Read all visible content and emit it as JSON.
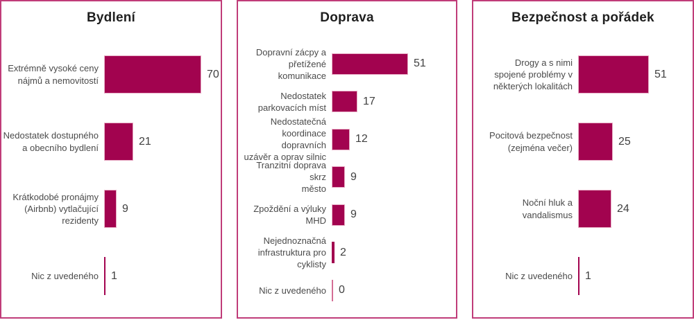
{
  "colors": {
    "bar_fill": "#A2034F",
    "bar_stroke": "#E8AEC6",
    "zero_bar": "#D46E96",
    "panel_border": "#C03C79",
    "label_text": "#4A4A4A",
    "value_text": "#404040",
    "title_text": "#1F1F1F"
  },
  "chart_data": [
    {
      "type": "bar",
      "orientation": "horizontal",
      "title": "Bydlení",
      "categories": [
        "Extrémně vysoké ceny\nnájmů a nemovitostí",
        "Nedostatek dostupného\na obecního bydlení",
        "Krátkodobé pronájmy\n(Airbnb) vytlačující\nrezidenty",
        "Nic z uvedeného"
      ],
      "values": [
        70,
        21,
        9,
        1
      ],
      "xlim": [
        0,
        70
      ],
      "data_labels": true,
      "grid": false,
      "legend": "none"
    },
    {
      "type": "bar",
      "orientation": "horizontal",
      "title": "Doprava",
      "categories": [
        "Dopravní zácpy a\npřetížené komunikace",
        "Nedostatek\nparkovacích míst",
        "Nedostatečná\nkoordinace dopravních\nuzávěr a oprav silnic",
        "Tranzitní doprava skrz\nměsto",
        "Zpoždění a výluky\nMHD",
        "Nejednoznačná\ninfrastruktura pro\ncyklisty",
        "Nic z uvedeného"
      ],
      "values": [
        51,
        17,
        12,
        9,
        9,
        2,
        0
      ],
      "xlim": [
        0,
        51
      ],
      "data_labels": true,
      "grid": false,
      "legend": "none"
    },
    {
      "type": "bar",
      "orientation": "horizontal",
      "title": "Bezpečnost a pořádek",
      "categories": [
        "Drogy a s nimi\nspojené problémy v\nněkterých lokalitách",
        "Pocitová bezpečnost\n(zejména večer)",
        "Noční hluk a\nvandalismus",
        "Nic z uvedeného"
      ],
      "values": [
        51,
        25,
        24,
        1
      ],
      "xlim": [
        0,
        51
      ],
      "data_labels": true,
      "grid": false,
      "legend": "none"
    }
  ]
}
